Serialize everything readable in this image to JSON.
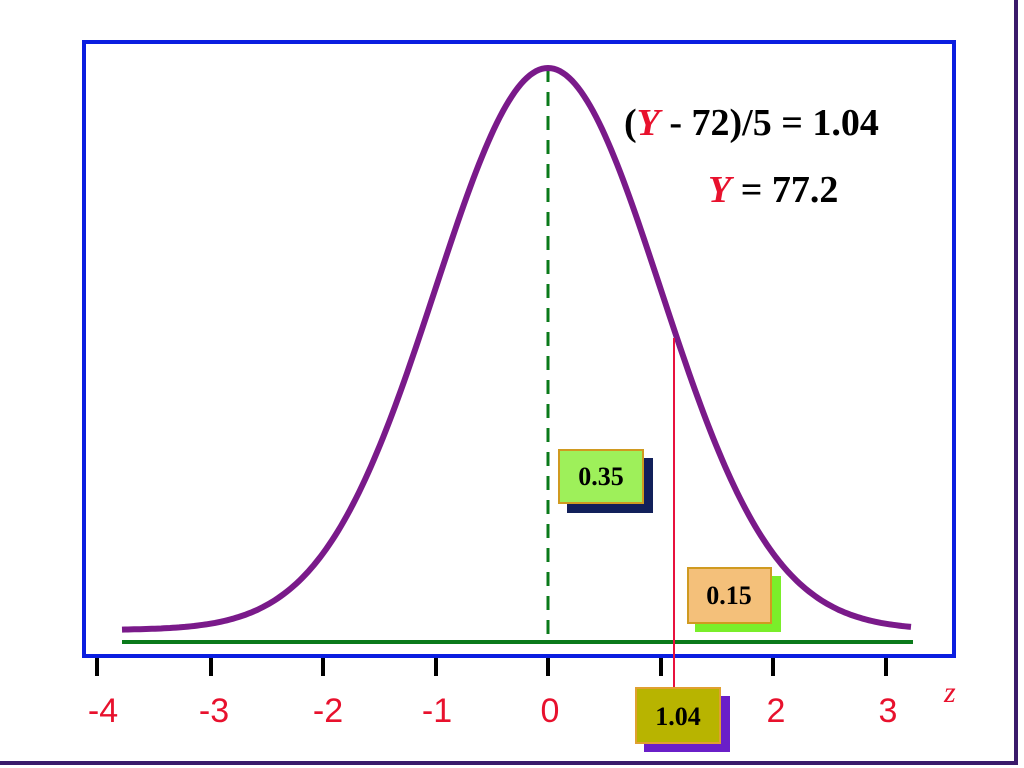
{
  "equations": [
    {
      "parts": [
        "(",
        "Y",
        " - 72)/5 = 1.04"
      ]
    },
    {
      "parts": [
        "Y",
        " = 77.2"
      ]
    }
  ],
  "axis": {
    "ticks": [
      "-4",
      "-3",
      "-2",
      "-1",
      "0",
      "2",
      "3"
    ],
    "label": "z"
  },
  "boxes": [
    "0.35",
    "0.15",
    "1.04"
  ]
}
